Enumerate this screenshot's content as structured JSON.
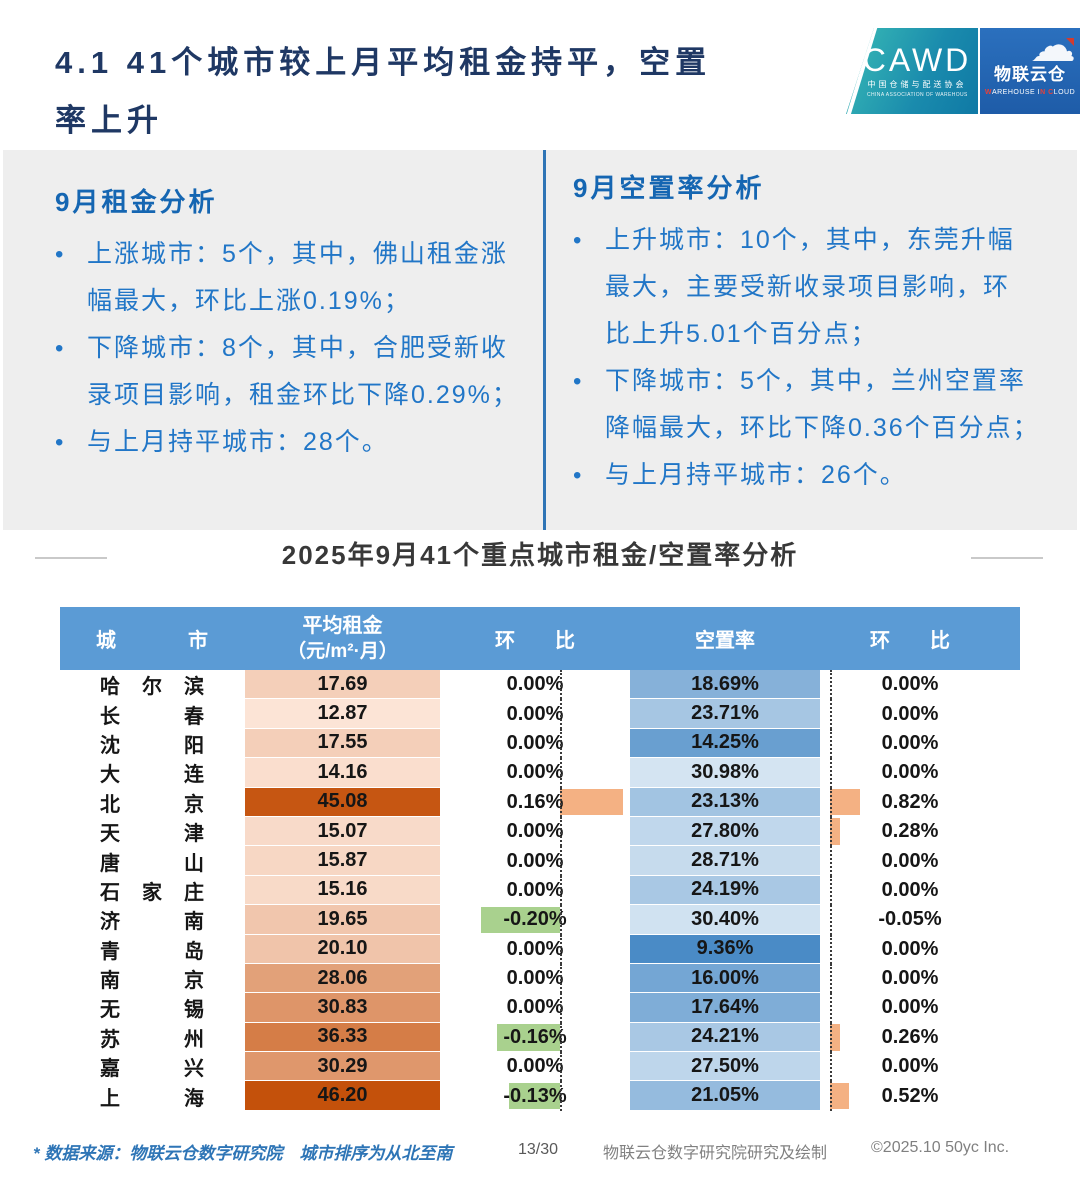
{
  "header": {
    "title_lines": [
      "4.1 41个城市较上月平均租金持平，空置",
      "率上升"
    ],
    "logo": {
      "cawd": "CAWD",
      "cawd_sub": "中国仓储与配送协会",
      "cawd_sub_en": "CHINA ASSOCIATION OF WAREHOUSING AND DISTRIBUTION",
      "brand": "物联云仓",
      "brand_sub_parts": [
        {
          "t": "W",
          "red": true
        },
        {
          "t": "AREHOUSE ",
          "red": false
        },
        {
          "t": "I",
          "red": false
        },
        {
          "t": "N",
          "red": true
        },
        {
          "t": " ",
          "red": false
        },
        {
          "t": "C",
          "red": true
        },
        {
          "t": "LOUD",
          "red": false
        }
      ]
    }
  },
  "rent_analysis": {
    "heading": "9月租金分析",
    "bullets": [
      [
        "上涨城市：5个，其中，佛山租金涨",
        "幅最大，环比上涨0.19%；"
      ],
      [
        "下降城市：8个，其中，合肥受新收",
        "录项目影响，租金环比下降0.29%；"
      ],
      [
        "与上月持平城市：28个。"
      ]
    ]
  },
  "vacancy_analysis": {
    "heading": "9月空置率分析",
    "bullets": [
      [
        "上升城市：10个，其中，东莞升幅",
        "最大，主要受新收录项目影响，环",
        "比上升5.01个百分点；"
      ],
      [
        "下降城市：5个，其中，兰州空置率",
        "降幅最大，环比下降0.36个百分点；"
      ],
      [
        "与上月持平城市：26个。"
      ]
    ]
  },
  "table_title": "2025年9月41个重点城市租金/空置率分析",
  "table": {
    "headers": {
      "city": "城市",
      "rent_line1": "平均租金",
      "rent_line2": "（元/m²·月）",
      "mom": "环比",
      "vacancy": "空置率"
    },
    "rows": [
      {
        "city": "哈尔滨",
        "rent": 17.69,
        "rent_mom": 0.0,
        "vacancy": 18.69,
        "vacancy_mom": 0.0
      },
      {
        "city": "长春",
        "rent": 12.87,
        "rent_mom": 0.0,
        "vacancy": 23.71,
        "vacancy_mom": 0.0
      },
      {
        "city": "沈阳",
        "rent": 17.55,
        "rent_mom": 0.0,
        "vacancy": 14.25,
        "vacancy_mom": 0.0
      },
      {
        "city": "大连",
        "rent": 14.16,
        "rent_mom": 0.0,
        "vacancy": 30.98,
        "vacancy_mom": 0.0
      },
      {
        "city": "北京",
        "rent": 45.08,
        "rent_mom": 0.16,
        "vacancy": 23.13,
        "vacancy_mom": 0.82
      },
      {
        "city": "天津",
        "rent": 15.07,
        "rent_mom": 0.0,
        "vacancy": 27.8,
        "vacancy_mom": 0.28
      },
      {
        "city": "唐山",
        "rent": 15.87,
        "rent_mom": 0.0,
        "vacancy": 28.71,
        "vacancy_mom": 0.0
      },
      {
        "city": "石家庄",
        "rent": 15.16,
        "rent_mom": 0.0,
        "vacancy": 24.19,
        "vacancy_mom": 0.0
      },
      {
        "city": "济南",
        "rent": 19.65,
        "rent_mom": -0.2,
        "vacancy": 30.4,
        "vacancy_mom": -0.05
      },
      {
        "city": "青岛",
        "rent": 20.1,
        "rent_mom": 0.0,
        "vacancy": 9.36,
        "vacancy_mom": 0.0
      },
      {
        "city": "南京",
        "rent": 28.06,
        "rent_mom": 0.0,
        "vacancy": 16.0,
        "vacancy_mom": 0.0
      },
      {
        "city": "无锡",
        "rent": 30.83,
        "rent_mom": 0.0,
        "vacancy": 17.64,
        "vacancy_mom": 0.0
      },
      {
        "city": "苏州",
        "rent": 36.33,
        "rent_mom": -0.16,
        "vacancy": 24.21,
        "vacancy_mom": 0.26
      },
      {
        "city": "嘉兴",
        "rent": 30.29,
        "rent_mom": 0.0,
        "vacancy": 27.5,
        "vacancy_mom": 0.0
      },
      {
        "city": "上海",
        "rent": 46.2,
        "rent_mom": -0.13,
        "vacancy": 21.05,
        "vacancy_mom": 0.52
      }
    ]
  },
  "footer": {
    "source_note": "* 数据来源：物联云仓数字研究院　城市排序为从北至南",
    "page_num": "13/30",
    "credit": "物联云仓数字研究院研究及绘制",
    "copyright": "©2025.10 50yc Inc."
  },
  "colors": {
    "title_navy": "#1F3864",
    "panel_bg": "#EEEEEE",
    "divider_blue": "#2E74B5",
    "text_blue": "#2176C7",
    "header_bg": "#5B9BD5",
    "rent_scale_low": "#FCE4D6",
    "rent_scale_high": "#C4510B",
    "vacancy_scale_dark": "#4A8BC6",
    "vacancy_scale_light": "#D4E4F2",
    "bar_positive": "#F4B183",
    "bar_negative": "#A9D18E"
  }
}
